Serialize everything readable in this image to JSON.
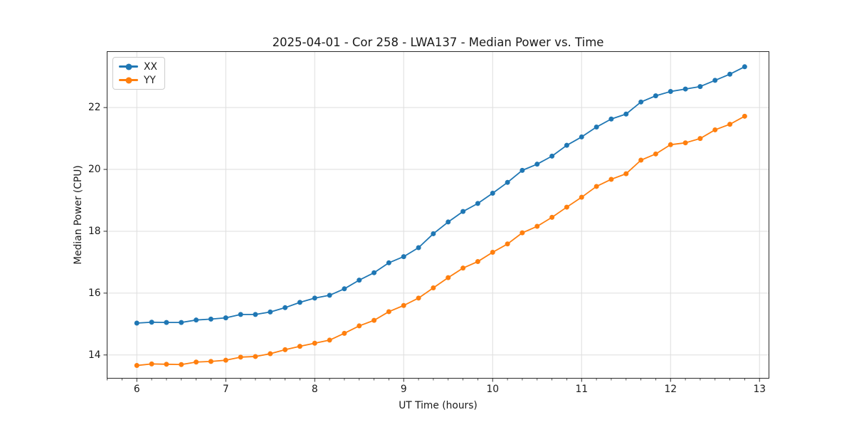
{
  "chart_data": {
    "type": "line",
    "title": "2025-04-01 - Cor 258 - LWA137 - Median Power vs. Time",
    "xlabel": "UT Time (hours)",
    "ylabel": "Median Power (CPU)",
    "x": [
      6.0,
      6.167,
      6.333,
      6.5,
      6.667,
      6.833,
      7.0,
      7.167,
      7.333,
      7.5,
      7.667,
      7.833,
      8.0,
      8.167,
      8.333,
      8.5,
      8.667,
      8.833,
      9.0,
      9.167,
      9.333,
      9.5,
      9.667,
      9.833,
      10.0,
      10.167,
      10.333,
      10.5,
      10.667,
      10.833,
      11.0,
      11.167,
      11.333,
      11.5,
      11.667,
      11.833,
      12.0,
      12.167,
      12.333,
      12.5,
      12.667,
      12.833
    ],
    "series": [
      {
        "name": "XX",
        "color": "#1f77b4",
        "marker": "circle",
        "values": [
          15.03,
          15.06,
          15.05,
          15.05,
          15.13,
          15.16,
          15.2,
          15.31,
          15.31,
          15.39,
          15.53,
          15.7,
          15.84,
          15.93,
          16.14,
          16.42,
          16.66,
          16.98,
          17.18,
          17.47,
          17.92,
          18.3,
          18.64,
          18.9,
          19.23,
          19.58,
          19.97,
          20.17,
          20.43,
          20.78,
          21.05,
          21.37,
          21.63,
          21.79,
          22.18,
          22.38,
          22.52,
          22.6,
          22.68,
          22.88,
          23.08,
          23.32
        ]
      },
      {
        "name": "YY",
        "color": "#ff7f0e",
        "marker": "circle",
        "values": [
          13.66,
          13.71,
          13.7,
          13.69,
          13.77,
          13.79,
          13.83,
          13.93,
          13.95,
          14.04,
          14.17,
          14.28,
          14.38,
          14.48,
          14.7,
          14.94,
          15.12,
          15.4,
          15.6,
          15.84,
          16.17,
          16.5,
          16.81,
          17.02,
          17.32,
          17.59,
          17.95,
          18.16,
          18.45,
          18.78,
          19.1,
          19.45,
          19.68,
          19.86,
          20.3,
          20.5,
          20.8,
          20.86,
          21.0,
          21.28,
          21.46,
          21.72
        ]
      }
    ],
    "xlim": [
      5.666,
      13.106
    ],
    "ylim": [
      13.247,
      23.81
    ],
    "xticks": [
      6,
      7,
      8,
      9,
      10,
      11,
      12,
      13
    ],
    "yticks": [
      14,
      16,
      18,
      20,
      22
    ],
    "x_minor_ticks_per_hour": 6,
    "grid": true,
    "grid_color": "#dedede",
    "spine_color": "#2a2a2a",
    "text_color": "#1a1a1a",
    "background": "#ffffff",
    "legend_position": "upper-left"
  }
}
